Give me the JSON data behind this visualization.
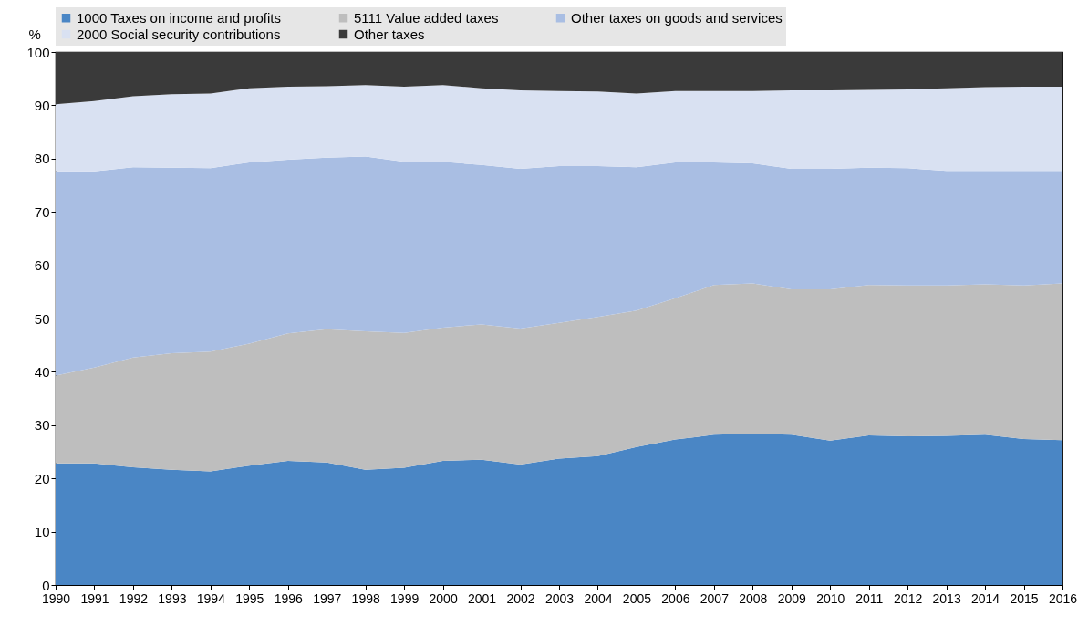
{
  "chart_data": {
    "type": "area",
    "stacked": true,
    "ylabel": "%",
    "x": [
      1990,
      1991,
      1992,
      1993,
      1994,
      1995,
      1996,
      1997,
      1998,
      1999,
      2000,
      2001,
      2002,
      2003,
      2004,
      2005,
      2006,
      2007,
      2008,
      2009,
      2010,
      2011,
      2012,
      2013,
      2014,
      2015,
      2016
    ],
    "xlim": [
      1990,
      2016
    ],
    "xticks": [
      1990,
      1991,
      1992,
      1993,
      1994,
      1995,
      1996,
      1997,
      1998,
      1999,
      2000,
      2001,
      2002,
      2003,
      2004,
      2005,
      2006,
      2007,
      2008,
      2009,
      2010,
      2011,
      2012,
      2013,
      2014,
      2015,
      2016
    ],
    "ylim": [
      0,
      100
    ],
    "yticks": [
      0,
      10,
      20,
      30,
      40,
      50,
      60,
      70,
      80,
      90,
      100
    ],
    "grid": false,
    "legend": "top",
    "series": [
      {
        "name": "1000 Taxes on income and profits",
        "color": "#4a86c5",
        "values": [
          22.8,
          22.8,
          22.1,
          21.6,
          21.3,
          22.4,
          23.3,
          23.0,
          21.6,
          22.0,
          23.3,
          23.5,
          22.6,
          23.7,
          24.2,
          25.9,
          27.3,
          28.2,
          28.4,
          28.2,
          27.1,
          28.1,
          27.9,
          28.0,
          28.2,
          27.4,
          27.2
        ]
      },
      {
        "name": "5111 Value added taxes",
        "color": "#bebebe",
        "values": [
          16.5,
          18.0,
          20.6,
          21.9,
          22.5,
          22.9,
          23.9,
          25.0,
          26.0,
          25.3,
          25.0,
          25.4,
          25.5,
          25.5,
          26.1,
          25.6,
          26.5,
          28.1,
          28.2,
          27.3,
          28.4,
          28.2,
          28.3,
          28.2,
          28.2,
          28.8,
          29.4
        ]
      },
      {
        "name": "Other taxes on goods and services",
        "color": "#a9bee3",
        "values": [
          38.3,
          36.8,
          35.7,
          34.8,
          34.4,
          34.0,
          32.6,
          32.2,
          32.8,
          32.1,
          31.1,
          29.9,
          30.0,
          29.4,
          28.3,
          26.9,
          25.5,
          23.0,
          22.5,
          22.6,
          22.6,
          22.0,
          22.0,
          21.5,
          21.3,
          21.5,
          21.1
        ]
      },
      {
        "name": "2000 Social security contributions",
        "color": "#d9e1f2",
        "values": [
          12.6,
          13.2,
          13.3,
          13.8,
          14.0,
          13.9,
          13.7,
          13.4,
          13.4,
          14.1,
          14.4,
          14.4,
          14.7,
          14.1,
          14.0,
          13.8,
          13.4,
          13.4,
          13.6,
          14.7,
          14.7,
          14.6,
          14.8,
          15.5,
          15.7,
          15.8,
          15.8
        ]
      },
      {
        "name": "Other taxes",
        "color": "#3a3a3a",
        "values": [
          9.8,
          9.2,
          8.3,
          7.9,
          7.8,
          6.8,
          6.5,
          6.4,
          6.2,
          6.5,
          6.2,
          6.8,
          7.2,
          7.3,
          7.4,
          7.8,
          7.3,
          7.3,
          7.3,
          7.2,
          7.2,
          7.1,
          7.0,
          6.8,
          6.6,
          6.5,
          6.5
        ]
      }
    ]
  }
}
